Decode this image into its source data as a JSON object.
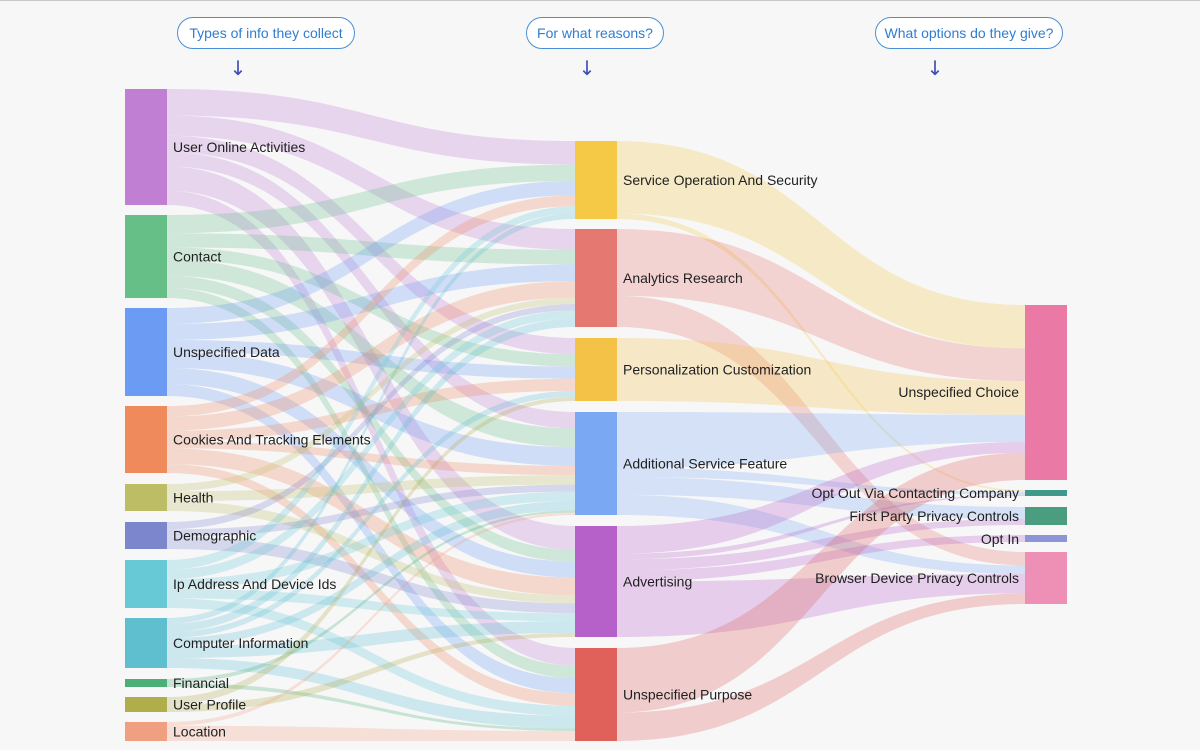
{
  "headers": {
    "types": "Types of info they collect",
    "reasons": "For what reasons?",
    "options": "What options do they give?",
    "arrow_icon": "arrow-down-icon"
  },
  "nodes": {
    "uoa": {
      "label": "User Online Activities",
      "color": "#c07fd2"
    },
    "contact": {
      "label": "Contact",
      "color": "#66bf87"
    },
    "unspec_data": {
      "label": "Unspecified Data",
      "color": "#6b9bf2"
    },
    "cookies": {
      "label": "Cookies And Tracking Elements",
      "color": "#ef8a5c"
    },
    "health": {
      "label": "Health",
      "color": "#bdbd66"
    },
    "demographic": {
      "label": "Demographic",
      "color": "#7c86cc"
    },
    "ip": {
      "label": "Ip Address And Device Ids",
      "color": "#67c8d6"
    },
    "computer": {
      "label": "Computer Information",
      "color": "#5fbfcf"
    },
    "financial": {
      "label": "Financial",
      "color": "#4caf78"
    },
    "user_profile": {
      "label": "User Profile",
      "color": "#b0ae4a"
    },
    "location": {
      "label": "Location",
      "color": "#f0a080"
    },
    "sos": {
      "label": "Service Operation And Security",
      "color": "#f5c945"
    },
    "analytics": {
      "label": "Analytics Research",
      "color": "#e57870"
    },
    "personalization": {
      "label": "Personalization Customization",
      "color": "#f5c248"
    },
    "additional": {
      "label": "Additional Service Feature",
      "color": "#7aa8f2"
    },
    "advertising": {
      "label": "Advertising",
      "color": "#b661c9"
    },
    "unspec_purpose": {
      "label": "Unspecified Purpose",
      "color": "#e0605a"
    },
    "unspec_choice": {
      "label": "Unspecified Choice",
      "color": "#ea7aa5"
    },
    "opt_out": {
      "label": "Opt Out Via Contacting Company",
      "color": "#3f9a8c"
    },
    "first_party": {
      "label": "First Party Privacy Controls",
      "color": "#4a9e7f"
    },
    "opt_in": {
      "label": "Opt In",
      "color": "#8c96d6"
    },
    "browser": {
      "label": "Browser Device Privacy Controls",
      "color": "#ee90b5"
    }
  },
  "links": [
    {
      "source": "uoa",
      "target": "sos",
      "value": 13
    },
    {
      "source": "uoa",
      "target": "analytics",
      "value": 10
    },
    {
      "source": "uoa",
      "target": "personalization",
      "value": 8
    },
    {
      "source": "uoa",
      "target": "additional",
      "value": 7
    },
    {
      "source": "uoa",
      "target": "advertising",
      "value": 12
    },
    {
      "source": "uoa",
      "target": "unspec_purpose",
      "value": 7
    },
    {
      "source": "contact",
      "target": "sos",
      "value": 9
    },
    {
      "source": "contact",
      "target": "analytics",
      "value": 7
    },
    {
      "source": "contact",
      "target": "personalization",
      "value": 6
    },
    {
      "source": "contact",
      "target": "additional",
      "value": 8
    },
    {
      "source": "contact",
      "target": "advertising",
      "value": 6
    },
    {
      "source": "contact",
      "target": "unspec_purpose",
      "value": 5
    },
    {
      "source": "unspec_data",
      "target": "sos",
      "value": 8
    },
    {
      "source": "unspec_data",
      "target": "analytics",
      "value": 8
    },
    {
      "source": "unspec_data",
      "target": "personalization",
      "value": 6
    },
    {
      "source": "unspec_data",
      "target": "additional",
      "value": 8
    },
    {
      "source": "unspec_data",
      "target": "advertising",
      "value": 8
    },
    {
      "source": "unspec_data",
      "target": "unspec_purpose",
      "value": 6
    },
    {
      "source": "cookies",
      "target": "sos",
      "value": 6
    },
    {
      "source": "cookies",
      "target": "analytics",
      "value": 8
    },
    {
      "source": "cookies",
      "target": "personalization",
      "value": 6
    },
    {
      "source": "cookies",
      "target": "additional",
      "value": 4
    },
    {
      "source": "cookies",
      "target": "advertising",
      "value": 9
    },
    {
      "source": "cookies",
      "target": "unspec_purpose",
      "value": 5
    },
    {
      "source": "health",
      "target": "analytics",
      "value": 3
    },
    {
      "source": "health",
      "target": "additional",
      "value": 4
    },
    {
      "source": "health",
      "target": "advertising",
      "value": 4
    },
    {
      "source": "demographic",
      "target": "analytics",
      "value": 3
    },
    {
      "source": "demographic",
      "target": "additional",
      "value": 3
    },
    {
      "source": "demographic",
      "target": "advertising",
      "value": 5
    },
    {
      "source": "ip",
      "target": "sos",
      "value": 4
    },
    {
      "source": "ip",
      "target": "analytics",
      "value": 4
    },
    {
      "source": "ip",
      "target": "additional",
      "value": 4
    },
    {
      "source": "ip",
      "target": "advertising",
      "value": 4
    },
    {
      "source": "ip",
      "target": "unspec_purpose",
      "value": 4
    },
    {
      "source": "computer",
      "target": "sos",
      "value": 3
    },
    {
      "source": "computer",
      "target": "analytics",
      "value": 4
    },
    {
      "source": "computer",
      "target": "personalization",
      "value": 3
    },
    {
      "source": "computer",
      "target": "additional",
      "value": 4
    },
    {
      "source": "computer",
      "target": "advertising",
      "value": 6
    },
    {
      "source": "computer",
      "target": "unspec_purpose",
      "value": 5
    },
    {
      "source": "financial",
      "target": "additional",
      "value": 1
    },
    {
      "source": "financial",
      "target": "unspec_purpose",
      "value": 1
    },
    {
      "source": "user_profile",
      "target": "personalization",
      "value": 2
    },
    {
      "source": "user_profile",
      "target": "advertising",
      "value": 2
    },
    {
      "source": "location",
      "target": "additional",
      "value": 1
    },
    {
      "source": "location",
      "target": "unspec_purpose",
      "value": 4
    },
    {
      "source": "sos",
      "target": "unspec_choice",
      "value": 40
    },
    {
      "source": "sos",
      "target": "opt_out",
      "value": 3
    },
    {
      "source": "analytics",
      "target": "unspec_choice",
      "value": 30
    },
    {
      "source": "analytics",
      "target": "browser",
      "value": 14
    },
    {
      "source": "personalization",
      "target": "unspec_choice",
      "value": 31
    },
    {
      "source": "additional",
      "target": "unspec_choice",
      "value": 25
    },
    {
      "source": "additional",
      "target": "first_party",
      "value": 8
    },
    {
      "source": "additional",
      "target": "opt_out",
      "value": 4
    },
    {
      "source": "additional",
      "target": "browser",
      "value": 9
    },
    {
      "source": "advertising",
      "target": "unspec_choice",
      "value": 10
    },
    {
      "source": "advertising",
      "target": "first_party",
      "value": 4
    },
    {
      "source": "advertising",
      "target": "browser",
      "value": 20
    },
    {
      "source": "advertising",
      "target": "opt_in",
      "value": 4
    },
    {
      "source": "advertising",
      "target": "opt_out",
      "value": 2
    },
    {
      "source": "unspec_purpose",
      "target": "unspec_choice",
      "value": 25
    },
    {
      "source": "unspec_purpose",
      "target": "browser",
      "value": 11
    }
  ]
}
